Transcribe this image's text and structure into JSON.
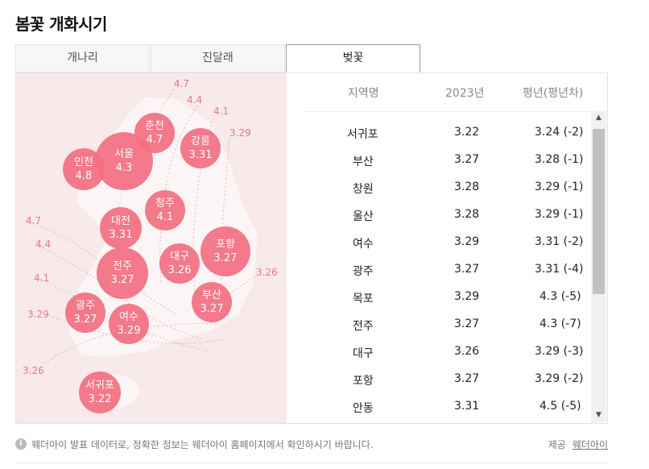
{
  "title": "봄꽃 개화시기",
  "tabs": [
    {
      "label": "개나리",
      "active": false
    },
    {
      "label": "진달래",
      "active": false
    },
    {
      "label": "벚꽃",
      "active": true
    }
  ],
  "map": {
    "cities": [
      {
        "name": "춘천",
        "value": "4.7"
      },
      {
        "name": "강릉",
        "value": "3.31"
      },
      {
        "name": "서울",
        "value": "4.3"
      },
      {
        "name": "인천",
        "value": "4.8"
      },
      {
        "name": "청주",
        "value": "4.1"
      },
      {
        "name": "대전",
        "value": "3.31"
      },
      {
        "name": "포항",
        "value": "3.27"
      },
      {
        "name": "대구",
        "value": "3.26"
      },
      {
        "name": "전주",
        "value": "3.27"
      },
      {
        "name": "부산",
        "value": "3.27"
      },
      {
        "name": "광주",
        "value": "3.27"
      },
      {
        "name": "여수",
        "value": "3.29"
      },
      {
        "name": "서귀포",
        "value": "3.22"
      }
    ],
    "contour_labels": [
      "4.7",
      "4.4",
      "4.1",
      "3.29",
      "4.7",
      "4.4",
      "4.1",
      "3.29",
      "3.26",
      "3.26"
    ]
  },
  "table": {
    "headers": {
      "region": "지역명",
      "year": "2023년",
      "normal": "평년(평년차)"
    },
    "rows": [
      {
        "region": "서귀포",
        "year": "3.22",
        "normal": "3.24 (-2)"
      },
      {
        "region": "부산",
        "year": "3.27",
        "normal": "3.28 (-1)"
      },
      {
        "region": "창원",
        "year": "3.28",
        "normal": "3.29 (-1)"
      },
      {
        "region": "울산",
        "year": "3.28",
        "normal": "3.29 (-1)"
      },
      {
        "region": "여수",
        "year": "3.29",
        "normal": "3.31 (-2)"
      },
      {
        "region": "광주",
        "year": "3.27",
        "normal": "3.31 (-4)"
      },
      {
        "region": "목포",
        "year": "3.29",
        "normal": "4.3 (-5)"
      },
      {
        "region": "전주",
        "year": "3.27",
        "normal": "4.3 (-7)"
      },
      {
        "region": "대구",
        "year": "3.26",
        "normal": "3.29 (-3)"
      },
      {
        "region": "포항",
        "year": "3.27",
        "normal": "3.29 (-2)"
      },
      {
        "region": "안동",
        "year": "3.31",
        "normal": "4.5 (-5)"
      }
    ]
  },
  "footer": {
    "info_icon": "i",
    "note": "웨더아이 발표 데이터로, 정확한 정보는 웨더아이 홈페이지에서 확인하시기 바랍니다.",
    "source_label": "제공",
    "source_link": "웨더아이"
  },
  "colors": {
    "accent": "#f36f82",
    "map_bg": "#f8e9ea"
  }
}
